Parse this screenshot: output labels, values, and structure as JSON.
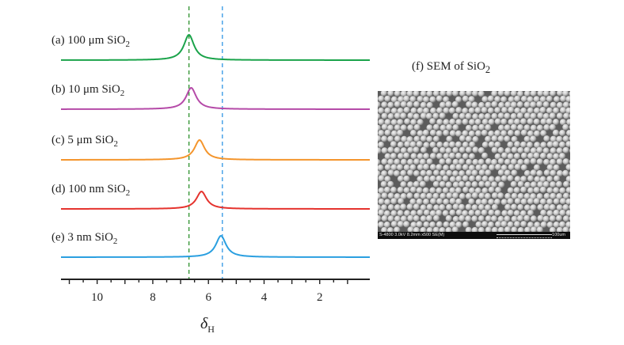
{
  "chart_data": {
    "type": "line",
    "title": "",
    "xlabel": "δ",
    "xlabel_sub": "H",
    "x_reversed": true,
    "xlim": [
      11.3,
      0.2
    ],
    "x_ticks": [
      10,
      8,
      6,
      4,
      2
    ],
    "y_ticks_shown": false,
    "reference_lines": [
      {
        "x": 6.7,
        "color": "#3f9b3f",
        "style": "dashed"
      },
      {
        "x": 5.5,
        "color": "#4aa3e8",
        "style": "dashed"
      }
    ],
    "series": [
      {
        "name": "(a) 100 μm SiO",
        "subscript": "2",
        "color": "#1aa34a",
        "peak_x": 6.7,
        "peak_height": 1.0
      },
      {
        "name": "(b) 10 μm SiO",
        "subscript": "2",
        "color": "#b54aa8",
        "peak_x": 6.62,
        "peak_height": 0.9
      },
      {
        "name": "(c) 5 μm SiO",
        "subscript": "2",
        "color": "#f4952c",
        "peak_x": 6.32,
        "peak_height": 0.85
      },
      {
        "name": "(d) 100 nm SiO",
        "subscript": "2",
        "color": "#e5332e",
        "peak_x": 6.25,
        "peak_height": 0.7
      },
      {
        "name": "(e) 3 nm SiO",
        "subscript": "2",
        "color": "#2a9fe0",
        "peak_x": 5.55,
        "peak_height": 0.85
      }
    ]
  },
  "sem": {
    "title": "(f)  SEM of SiO",
    "title_sub": "2",
    "info_text": "S-4800 3.0kV 8.2mm x500 SE(M)",
    "scale_text": "100um"
  }
}
